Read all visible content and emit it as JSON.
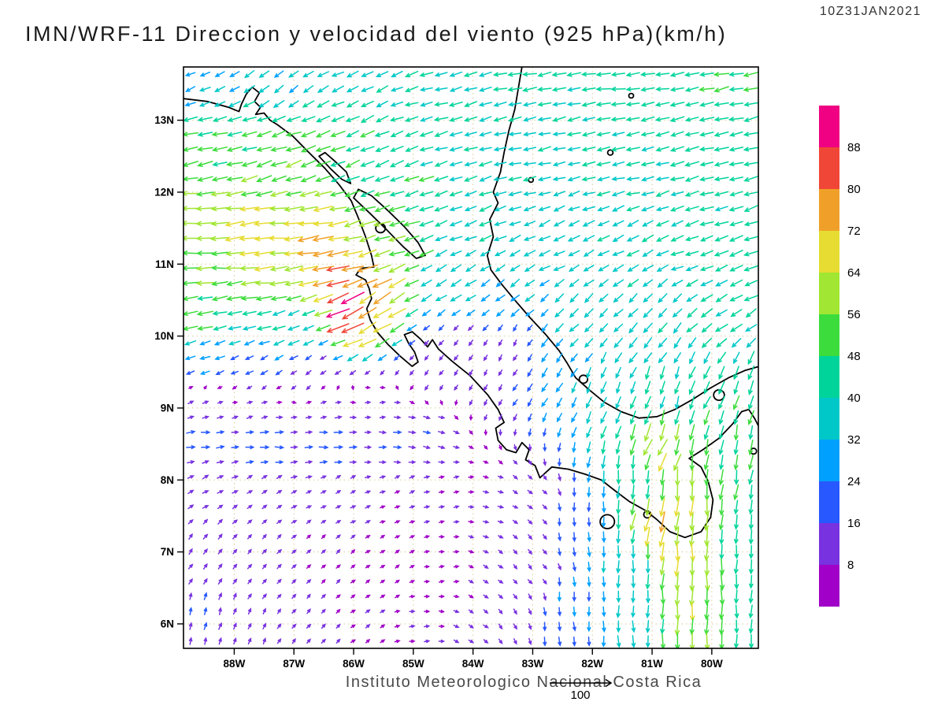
{
  "header": {
    "timestamp": "10Z31JAN2021",
    "title": "IMN/WRF-11 Direccion y velocidad del viento (925 hPa)(km/h)"
  },
  "footer": {
    "caption": "Instituto Meteorologico Nacional Costa Rica",
    "reference_vector": {
      "label": "100"
    }
  },
  "style": {
    "grid_color": "#d2bc78",
    "coast_color": "#000000",
    "frame_color": "#000000",
    "title_color": "#1a1a1a",
    "caption_color": "#4a4a4a",
    "timestamp_color": "#333333"
  },
  "chart_data": {
    "type": "vector_field_map",
    "model": "IMN/WRF-11",
    "variable": "Direccion y velocidad del viento",
    "level": "925 hPa",
    "units": "km/h",
    "valid_time": "10Z31JAN2021",
    "lon_range": [
      -88.85,
      -79.22
    ],
    "lat_range": [
      5.66,
      13.74
    ],
    "x_ticks": [
      {
        "lon": -88,
        "label": "88W"
      },
      {
        "lon": -87,
        "label": "87W"
      },
      {
        "lon": -86,
        "label": "86W"
      },
      {
        "lon": -85,
        "label": "85W"
      },
      {
        "lon": -84,
        "label": "84W"
      },
      {
        "lon": -83,
        "label": "83W"
      },
      {
        "lon": -82,
        "label": "82W"
      },
      {
        "lon": -81,
        "label": "81W"
      },
      {
        "lon": -80,
        "label": "80W"
      }
    ],
    "y_ticks": [
      {
        "lat": 13,
        "label": "13N"
      },
      {
        "lat": 12,
        "label": "12N"
      },
      {
        "lat": 11,
        "label": "11N"
      },
      {
        "lat": 10,
        "label": "10N"
      },
      {
        "lat": 9,
        "label": "9N"
      },
      {
        "lat": 8,
        "label": "8N"
      },
      {
        "lat": 7,
        "label": "7N"
      },
      {
        "lat": 6,
        "label": "6N"
      }
    ],
    "colorbar": {
      "levels": [
        8,
        16,
        24,
        32,
        40,
        48,
        56,
        64,
        72,
        80,
        88
      ],
      "labels": [
        "8",
        "16",
        "24",
        "32",
        "40",
        "48",
        "56",
        "64",
        "72",
        "80",
        "88"
      ],
      "colors": [
        "#A000C8",
        "#7832E0",
        "#2858FF",
        "#00A0FF",
        "#00C8C8",
        "#00D49B",
        "#3CDC3C",
        "#A0E632",
        "#E6DC32",
        "#F0A028",
        "#F04638",
        "#F00082"
      ]
    },
    "reference_speed": 100,
    "wind_vectors_format": "[lon, lat, direction_toward_deg(0=E,90=N), speed_kmh]",
    "wind_vectors": [
      [
        -88.6,
        13.6,
        205,
        30
      ],
      [
        -87.2,
        13.6,
        215,
        34
      ],
      [
        -85.8,
        13.6,
        205,
        38
      ],
      [
        -84.4,
        13.6,
        195,
        40
      ],
      [
        -83.0,
        13.6,
        190,
        42
      ],
      [
        -81.5,
        13.6,
        188,
        44
      ],
      [
        -79.6,
        13.6,
        192,
        46
      ],
      [
        -88.6,
        12.6,
        192,
        50
      ],
      [
        -87.2,
        12.6,
        198,
        52
      ],
      [
        -85.9,
        12.5,
        202,
        46
      ],
      [
        -84.5,
        12.5,
        196,
        40
      ],
      [
        -83.0,
        12.4,
        192,
        38
      ],
      [
        -81.5,
        12.4,
        192,
        40
      ],
      [
        -80.0,
        12.4,
        194,
        44
      ],
      [
        -88.7,
        11.6,
        184,
        60
      ],
      [
        -87.6,
        11.4,
        186,
        66
      ],
      [
        -86.6,
        11.2,
        190,
        72
      ],
      [
        -86.2,
        10.75,
        196,
        80
      ],
      [
        -86.05,
        10.38,
        205,
        90
      ],
      [
        -85.6,
        10.45,
        212,
        68
      ],
      [
        -88.7,
        10.9,
        182,
        56
      ],
      [
        -87.5,
        10.8,
        184,
        62
      ],
      [
        -85.3,
        11.45,
        196,
        54
      ],
      [
        -84.9,
        12.0,
        200,
        47
      ],
      [
        -88.6,
        10.3,
        190,
        50
      ],
      [
        -87.6,
        10.15,
        196,
        42
      ],
      [
        -86.9,
        10.0,
        205,
        34
      ],
      [
        -88.5,
        9.7,
        200,
        28
      ],
      [
        -87.6,
        9.6,
        210,
        20
      ],
      [
        -86.7,
        9.55,
        215,
        13
      ],
      [
        -84.0,
        11.6,
        200,
        38
      ],
      [
        -82.8,
        11.3,
        205,
        37
      ],
      [
        -81.5,
        11.2,
        205,
        38
      ],
      [
        -80.2,
        11.3,
        198,
        42
      ],
      [
        -84.3,
        10.7,
        212,
        36
      ],
      [
        -83.3,
        10.5,
        218,
        32
      ],
      [
        -82.2,
        10.2,
        222,
        35
      ],
      [
        -81.0,
        10.1,
        228,
        38
      ],
      [
        -79.8,
        10.2,
        215,
        42
      ],
      [
        -79.4,
        11.0,
        200,
        44
      ],
      [
        -84.3,
        9.9,
        230,
        13
      ],
      [
        -83.8,
        9.6,
        240,
        12
      ],
      [
        -84.8,
        9.55,
        230,
        10
      ],
      [
        -83.3,
        9.9,
        240,
        14
      ],
      [
        -82.6,
        9.7,
        235,
        30
      ],
      [
        -81.8,
        9.3,
        248,
        36
      ],
      [
        -80.8,
        9.2,
        252,
        40
      ],
      [
        -79.9,
        9.3,
        245,
        43
      ],
      [
        -79.35,
        9.2,
        255,
        46
      ],
      [
        -80.6,
        8.6,
        262,
        52
      ],
      [
        -80.5,
        7.8,
        267,
        62
      ],
      [
        -80.45,
        7.0,
        269,
        64
      ],
      [
        -80.35,
        6.2,
        270,
        60
      ],
      [
        -80.3,
        5.8,
        271,
        55
      ],
      [
        -79.6,
        8.2,
        262,
        47
      ],
      [
        -79.4,
        7.2,
        266,
        44
      ],
      [
        -79.35,
        6.2,
        268,
        42
      ],
      [
        -81.2,
        8.0,
        268,
        40
      ],
      [
        -81.3,
        7.0,
        270,
        36
      ],
      [
        -81.3,
        6.0,
        271,
        34
      ],
      [
        -82.2,
        7.4,
        272,
        22
      ],
      [
        -82.3,
        6.3,
        274,
        24
      ],
      [
        -82.6,
        5.8,
        276,
        22
      ],
      [
        -81.0,
        7.3,
        255,
        72
      ],
      [
        -80.85,
        8.45,
        242,
        66
      ],
      [
        -88.6,
        9.0,
        25,
        12
      ],
      [
        -87.6,
        8.9,
        20,
        11
      ],
      [
        -86.6,
        8.9,
        15,
        10
      ],
      [
        -85.6,
        8.9,
        10,
        9
      ],
      [
        -88.6,
        8.55,
        5,
        22
      ],
      [
        -87.5,
        8.55,
        0,
        24
      ],
      [
        -86.4,
        8.55,
        0,
        23
      ],
      [
        -85.3,
        8.55,
        355,
        19
      ],
      [
        -84.8,
        8.6,
        350,
        15
      ],
      [
        -88.6,
        8.0,
        30,
        13
      ],
      [
        -87.5,
        7.9,
        35,
        10
      ],
      [
        -86.3,
        7.9,
        30,
        9
      ],
      [
        -85.2,
        7.9,
        25,
        8
      ],
      [
        -84.4,
        7.8,
        15,
        8
      ],
      [
        -83.6,
        7.6,
        350,
        9
      ],
      [
        -88.6,
        7.0,
        55,
        12
      ],
      [
        -87.6,
        6.9,
        50,
        10
      ],
      [
        -86.5,
        6.9,
        45,
        8
      ],
      [
        -85.4,
        6.8,
        35,
        7
      ],
      [
        -84.5,
        6.7,
        10,
        7
      ],
      [
        -83.7,
        6.6,
        330,
        9
      ],
      [
        -88.5,
        6.1,
        75,
        16
      ],
      [
        -87.8,
        5.9,
        65,
        12
      ],
      [
        -86.8,
        6.0,
        50,
        9
      ],
      [
        -85.8,
        5.9,
        35,
        8
      ],
      [
        -84.9,
        5.9,
        5,
        8
      ],
      [
        -84.0,
        5.9,
        330,
        9
      ],
      [
        -83.3,
        6.0,
        300,
        11
      ],
      [
        -83.0,
        6.8,
        310,
        10
      ],
      [
        -83.0,
        7.6,
        320,
        10
      ]
    ],
    "coastlines": {
      "pacific": [
        [
          -88.85,
          13.3
        ],
        [
          -88.45,
          13.26
        ],
        [
          -88.1,
          13.18
        ],
        [
          -87.92,
          13.12
        ],
        [
          -87.88,
          13.22
        ],
        [
          -87.8,
          13.36
        ],
        [
          -87.7,
          13.46
        ],
        [
          -87.58,
          13.38
        ],
        [
          -87.66,
          13.26
        ],
        [
          -87.56,
          13.18
        ],
        [
          -87.64,
          13.08
        ],
        [
          -87.5,
          13.1
        ],
        [
          -87.4,
          13.0
        ],
        [
          -87.28,
          12.94
        ],
        [
          -87.02,
          12.78
        ],
        [
          -86.76,
          12.56
        ],
        [
          -86.48,
          12.33
        ],
        [
          -86.24,
          12.1
        ],
        [
          -86.04,
          11.88
        ],
        [
          -85.92,
          11.64
        ],
        [
          -85.8,
          11.38
        ],
        [
          -85.7,
          11.12
        ],
        [
          -85.66,
          10.96
        ],
        [
          -85.88,
          10.94
        ],
        [
          -85.96,
          10.85
        ],
        [
          -85.8,
          10.78
        ],
        [
          -85.74,
          10.66
        ],
        [
          -85.7,
          10.52
        ],
        [
          -85.78,
          10.38
        ],
        [
          -85.72,
          10.22
        ],
        [
          -85.6,
          10.05
        ],
        [
          -85.42,
          9.88
        ],
        [
          -85.22,
          9.72
        ],
        [
          -85.02,
          9.58
        ],
        [
          -84.92,
          9.64
        ],
        [
          -84.98,
          9.78
        ],
        [
          -85.08,
          9.9
        ],
        [
          -85.15,
          10.02
        ],
        [
          -85.02,
          10.06
        ],
        [
          -84.88,
          9.96
        ],
        [
          -84.76,
          9.85
        ],
        [
          -84.68,
          9.95
        ],
        [
          -84.58,
          9.82
        ],
        [
          -84.35,
          9.65
        ],
        [
          -84.05,
          9.45
        ],
        [
          -83.75,
          9.18
        ],
        [
          -83.58,
          8.98
        ],
        [
          -83.48,
          8.8
        ],
        [
          -83.62,
          8.72
        ],
        [
          -83.58,
          8.55
        ],
        [
          -83.44,
          8.42
        ],
        [
          -83.28,
          8.38
        ],
        [
          -83.18,
          8.52
        ],
        [
          -83.06,
          8.42
        ],
        [
          -83.12,
          8.28
        ],
        [
          -82.96,
          8.2
        ],
        [
          -82.88,
          8.03
        ],
        [
          -82.68,
          8.18
        ],
        [
          -82.4,
          8.15
        ],
        [
          -82.12,
          8.08
        ],
        [
          -81.85,
          8.0
        ],
        [
          -81.62,
          7.85
        ],
        [
          -81.38,
          7.7
        ],
        [
          -81.12,
          7.58
        ],
        [
          -80.92,
          7.45
        ],
        [
          -80.7,
          7.28
        ],
        [
          -80.45,
          7.2
        ],
        [
          -80.18,
          7.28
        ],
        [
          -80.02,
          7.48
        ],
        [
          -79.98,
          7.72
        ],
        [
          -80.06,
          7.98
        ],
        [
          -80.18,
          8.18
        ],
        [
          -80.38,
          8.3
        ],
        [
          -80.15,
          8.42
        ],
        [
          -79.88,
          8.58
        ],
        [
          -79.65,
          8.78
        ],
        [
          -79.5,
          8.95
        ],
        [
          -79.38,
          8.98
        ],
        [
          -79.28,
          8.85
        ],
        [
          -79.2,
          8.72
        ]
      ],
      "caribbean": [
        [
          -83.18,
          13.74
        ],
        [
          -83.24,
          13.45
        ],
        [
          -83.3,
          13.15
        ],
        [
          -83.4,
          12.85
        ],
        [
          -83.48,
          12.55
        ],
        [
          -83.54,
          12.28
        ],
        [
          -83.66,
          12.0
        ],
        [
          -83.58,
          11.85
        ],
        [
          -83.72,
          11.62
        ],
        [
          -83.66,
          11.38
        ],
        [
          -83.76,
          11.12
        ],
        [
          -83.7,
          10.92
        ],
        [
          -83.52,
          10.72
        ],
        [
          -83.3,
          10.5
        ],
        [
          -83.05,
          10.26
        ],
        [
          -82.78,
          10.02
        ],
        [
          -82.56,
          9.8
        ],
        [
          -82.42,
          9.62
        ],
        [
          -82.28,
          9.42
        ],
        [
          -82.05,
          9.25
        ],
        [
          -81.8,
          9.08
        ],
        [
          -81.52,
          8.95
        ],
        [
          -81.22,
          8.86
        ],
        [
          -80.92,
          8.88
        ],
        [
          -80.62,
          8.98
        ],
        [
          -80.32,
          9.12
        ],
        [
          -80.02,
          9.28
        ],
        [
          -79.72,
          9.42
        ],
        [
          -79.45,
          9.52
        ],
        [
          -79.2,
          9.58
        ]
      ],
      "lake_nicaragua": [
        [
          -86.0,
          11.92
        ],
        [
          -85.72,
          11.7
        ],
        [
          -85.45,
          11.48
        ],
        [
          -85.18,
          11.25
        ],
        [
          -84.95,
          11.08
        ],
        [
          -84.8,
          11.12
        ],
        [
          -84.92,
          11.3
        ],
        [
          -85.15,
          11.52
        ],
        [
          -85.42,
          11.74
        ],
        [
          -85.7,
          11.95
        ],
        [
          -85.92,
          12.04
        ]
      ],
      "lake_managua": [
        [
          -86.58,
          12.5
        ],
        [
          -86.38,
          12.32
        ],
        [
          -86.2,
          12.18
        ],
        [
          -86.05,
          12.12
        ],
        [
          -86.12,
          12.28
        ],
        [
          -86.3,
          12.42
        ],
        [
          -86.48,
          12.55
        ]
      ],
      "islands": [
        {
          "name": "ometepe",
          "lon": -85.55,
          "lat": 11.5,
          "r": 0.08
        },
        {
          "name": "coiba",
          "lon": -81.75,
          "lat": 7.42,
          "r": 0.12
        },
        {
          "name": "cebaco",
          "lon": -81.08,
          "lat": 7.52,
          "r": 0.06
        },
        {
          "name": "bocas-del-toro",
          "lon": -82.15,
          "lat": 9.4,
          "r": 0.07
        },
        {
          "name": "corn-islands",
          "lon": -83.03,
          "lat": 12.17,
          "r": 0.04
        },
        {
          "name": "san-andres",
          "lon": -81.7,
          "lat": 12.55,
          "r": 0.045
        },
        {
          "name": "providencia",
          "lon": -81.35,
          "lat": 13.34,
          "r": 0.04
        },
        {
          "name": "gatun-lake",
          "lon": -79.88,
          "lat": 9.18,
          "r": 0.09
        },
        {
          "name": "pearl-islands",
          "lon": -79.3,
          "lat": 8.4,
          "r": 0.05
        }
      ]
    }
  }
}
